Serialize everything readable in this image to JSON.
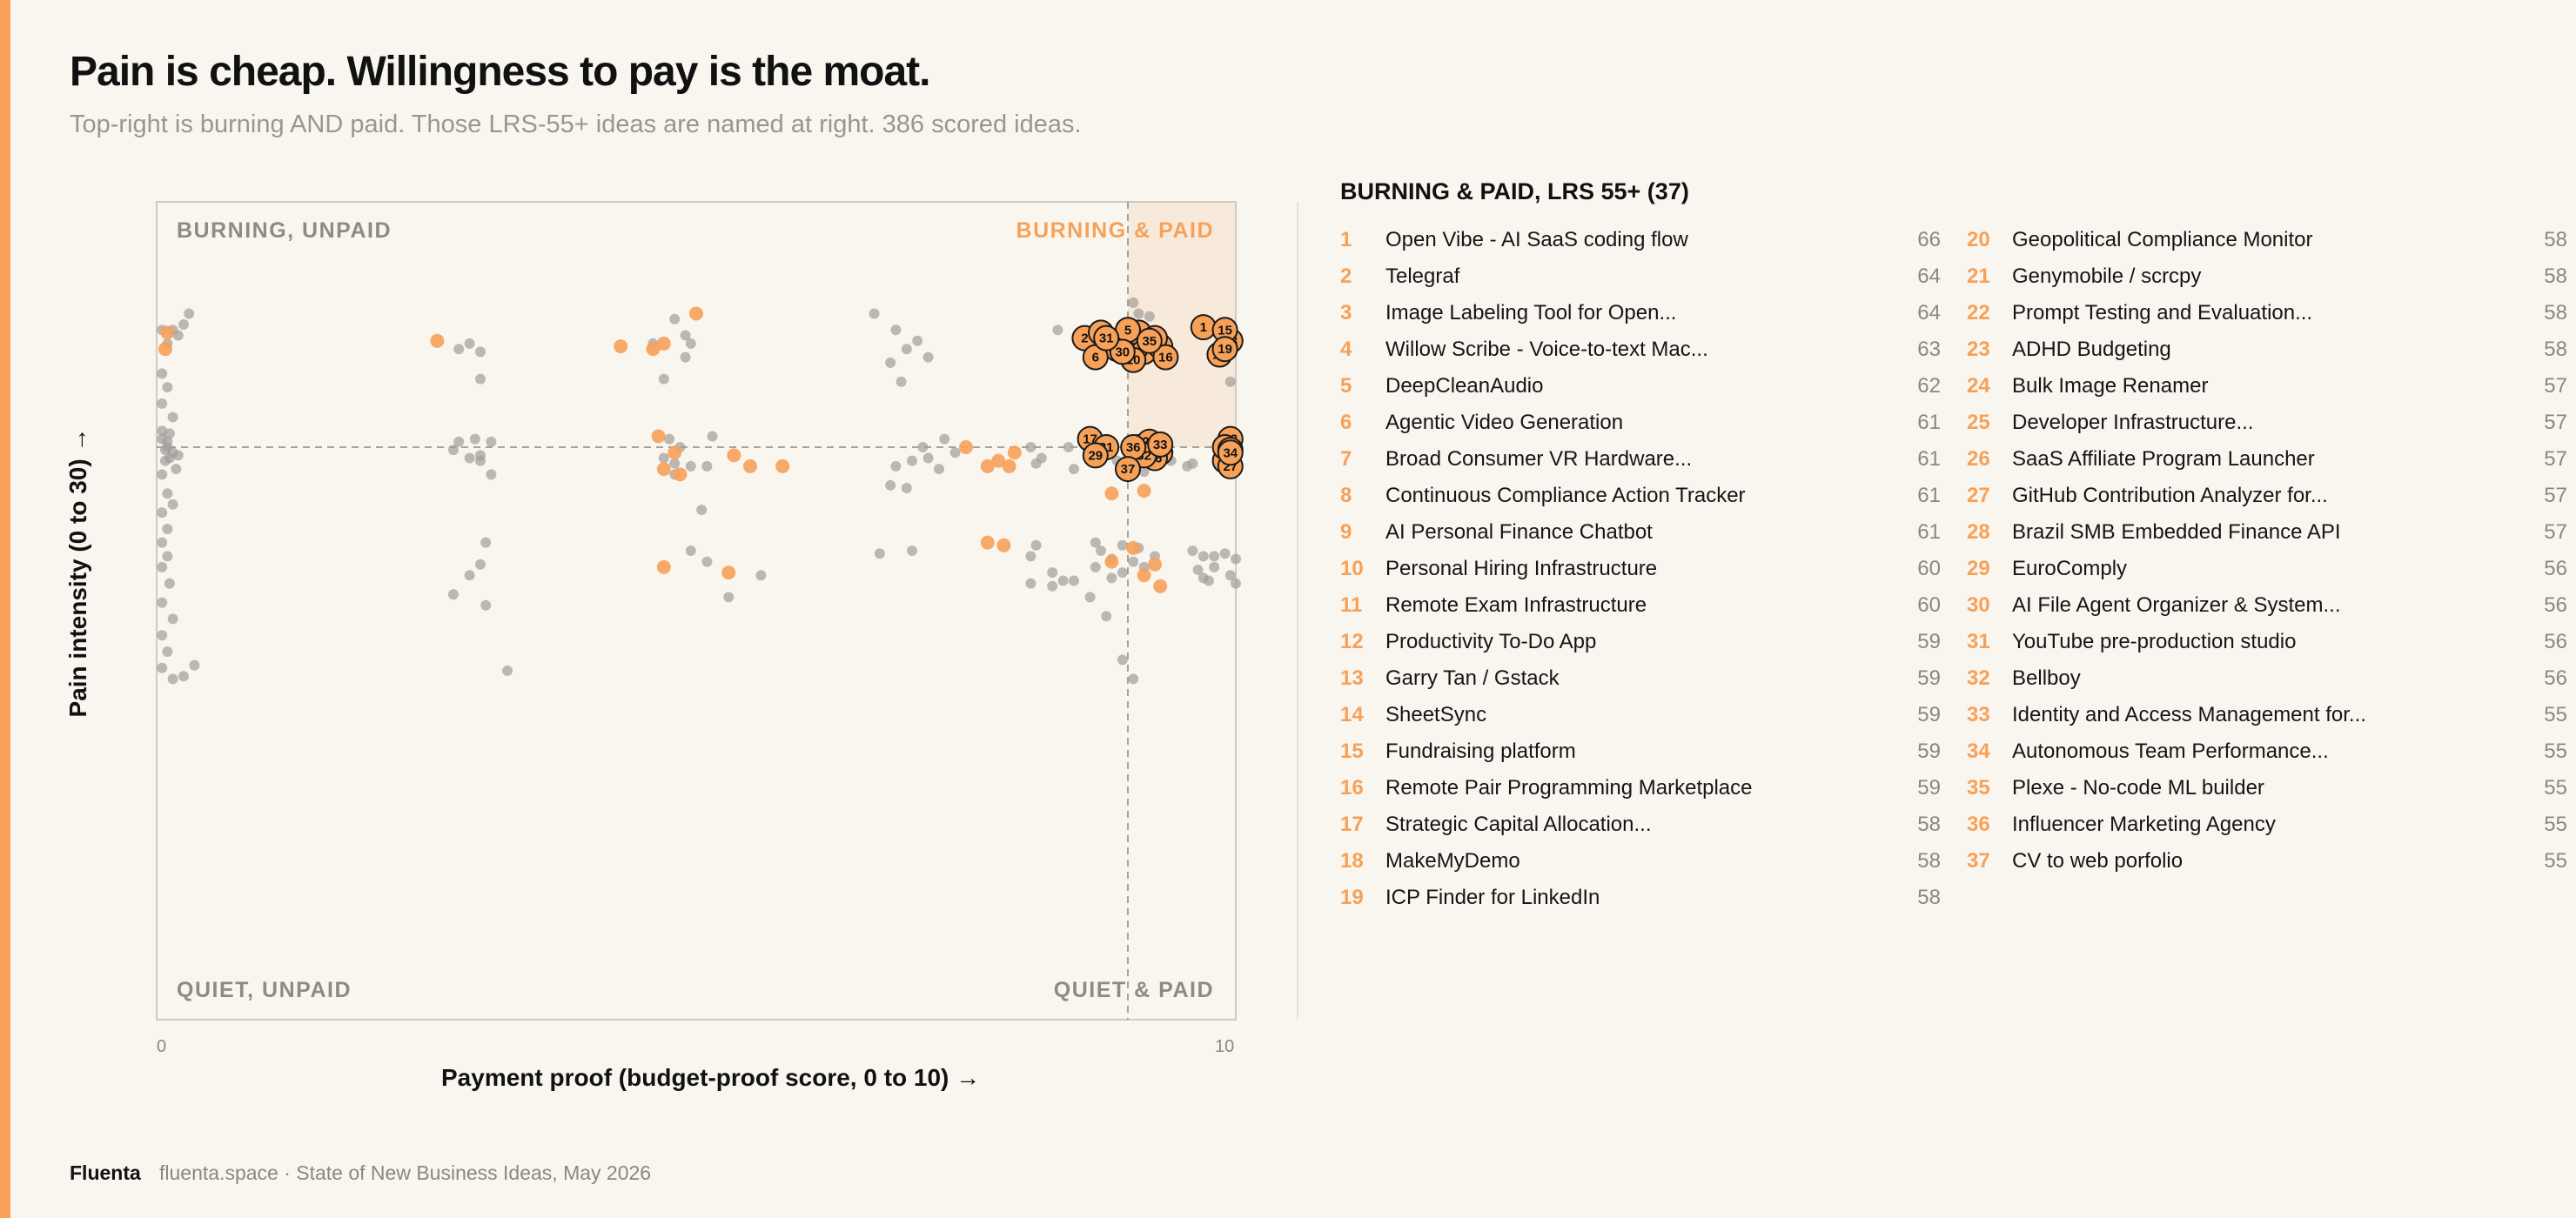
{
  "header": {
    "title": "Pain is cheap. Willingness to pay is the moat.",
    "subtitle": "Top-right is burning AND paid. Those LRS-55+ ideas are named at right. 386 scored ideas."
  },
  "colors": {
    "accent": "#f7a158",
    "gray_point": "#a19d98",
    "background": "#f9f6f0",
    "highlight_fill": "#f7a158"
  },
  "quadrants": {
    "top_left": "BURNING, UNPAID",
    "top_right": "BURNING & PAID",
    "bottom_left": "QUIET, UNPAID",
    "bottom_right": "QUIET & PAID"
  },
  "list": {
    "title": "BURNING & PAID, LRS 55+ (37)",
    "items": [
      {
        "rank": "1",
        "name": "Open Vibe - AI SaaS coding flow",
        "score": "66"
      },
      {
        "rank": "2",
        "name": "Telegraf",
        "score": "64"
      },
      {
        "rank": "3",
        "name": "Image Labeling Tool for Open...",
        "score": "64"
      },
      {
        "rank": "4",
        "name": "Willow Scribe - Voice-to-text Mac...",
        "score": "63"
      },
      {
        "rank": "5",
        "name": "DeepCleanAudio",
        "score": "62"
      },
      {
        "rank": "6",
        "name": "Agentic Video Generation",
        "score": "61"
      },
      {
        "rank": "7",
        "name": "Broad Consumer VR Hardware...",
        "score": "61"
      },
      {
        "rank": "8",
        "name": "Continuous Compliance Action Tracker",
        "score": "61"
      },
      {
        "rank": "9",
        "name": "AI Personal Finance Chatbot",
        "score": "61"
      },
      {
        "rank": "10",
        "name": "Personal Hiring Infrastructure",
        "score": "60"
      },
      {
        "rank": "11",
        "name": "Remote Exam Infrastructure",
        "score": "60"
      },
      {
        "rank": "12",
        "name": "Productivity To-Do App",
        "score": "59"
      },
      {
        "rank": "13",
        "name": "Garry Tan / Gstack",
        "score": "59"
      },
      {
        "rank": "14",
        "name": "SheetSync",
        "score": "59"
      },
      {
        "rank": "15",
        "name": "Fundraising platform",
        "score": "59"
      },
      {
        "rank": "16",
        "name": "Remote Pair Programming Marketplace",
        "score": "59"
      },
      {
        "rank": "17",
        "name": "Strategic Capital Allocation...",
        "score": "58"
      },
      {
        "rank": "18",
        "name": "MakeMyDemo",
        "score": "58"
      },
      {
        "rank": "19",
        "name": "ICP Finder for LinkedIn",
        "score": "58"
      },
      {
        "rank": "20",
        "name": "Geopolitical Compliance Monitor",
        "score": "58"
      },
      {
        "rank": "21",
        "name": "Genymobile / scrcpy",
        "score": "58"
      },
      {
        "rank": "22",
        "name": "Prompt Testing and Evaluation...",
        "score": "58"
      },
      {
        "rank": "23",
        "name": "ADHD Budgeting",
        "score": "58"
      },
      {
        "rank": "24",
        "name": "Bulk Image Renamer",
        "score": "57"
      },
      {
        "rank": "25",
        "name": "Developer Infrastructure...",
        "score": "57"
      },
      {
        "rank": "26",
        "name": "SaaS Affiliate Program Launcher",
        "score": "57"
      },
      {
        "rank": "27",
        "name": "GitHub Contribution Analyzer for...",
        "score": "57"
      },
      {
        "rank": "28",
        "name": "Brazil SMB Embedded Finance API",
        "score": "57"
      },
      {
        "rank": "29",
        "name": "EuroComply",
        "score": "56"
      },
      {
        "rank": "30",
        "name": "AI File Agent Organizer & System...",
        "score": "56"
      },
      {
        "rank": "31",
        "name": "YouTube pre-production studio",
        "score": "56"
      },
      {
        "rank": "32",
        "name": "Bellboy",
        "score": "56"
      },
      {
        "rank": "33",
        "name": "Identity and Access Management for...",
        "score": "55"
      },
      {
        "rank": "34",
        "name": "Autonomous Team Performance...",
        "score": "55"
      },
      {
        "rank": "35",
        "name": "Plexe - No-code ML builder",
        "score": "55"
      },
      {
        "rank": "36",
        "name": "Influencer Marketing Agency",
        "score": "55"
      },
      {
        "rank": "37",
        "name": "CV to web porfolio",
        "score": "55"
      }
    ]
  },
  "footer": {
    "brand": "Fluenta",
    "note": "fluenta.space · State of New Business Ideas, May 2026"
  },
  "chart_data": {
    "type": "scatter",
    "xlabel": "Payment proof (budget-proof score, 0 to 10) →",
    "ylabel": "Pain intensity (0 to 30) →",
    "xlim": [
      0,
      10
    ],
    "ylim": [
      0,
      30
    ],
    "xticks": [
      "0",
      "10"
    ],
    "threshold": {
      "x": 9,
      "y": 21
    },
    "grid": false,
    "legend": "none",
    "highlighted_points": [
      {
        "label": "1",
        "x": 9.7,
        "y": 25.4
      },
      {
        "label": "2",
        "x": 8.6,
        "y": 25.0
      },
      {
        "label": "3",
        "x": 8.9,
        "y": 24.6
      },
      {
        "label": "4",
        "x": 9.1,
        "y": 25.2
      },
      {
        "label": "5",
        "x": 9.0,
        "y": 25.3
      },
      {
        "label": "6",
        "x": 8.7,
        "y": 24.3
      },
      {
        "label": "7",
        "x": 9.2,
        "y": 24.9
      },
      {
        "label": "8",
        "x": 9.15,
        "y": 24.5
      },
      {
        "label": "9",
        "x": 8.75,
        "y": 25.2
      },
      {
        "label": "10",
        "x": 9.05,
        "y": 24.2
      },
      {
        "label": "11",
        "x": 9.3,
        "y": 24.7
      },
      {
        "label": "12",
        "x": 9.25,
        "y": 25.0
      },
      {
        "label": "13",
        "x": 9.95,
        "y": 24.9
      },
      {
        "label": "14",
        "x": 9.85,
        "y": 24.4
      },
      {
        "label": "15",
        "x": 9.9,
        "y": 25.3
      },
      {
        "label": "16",
        "x": 9.35,
        "y": 24.3
      },
      {
        "label": "17",
        "x": 8.65,
        "y": 21.3
      },
      {
        "label": "18",
        "x": 9.1,
        "y": 21.0
      },
      {
        "label": "19",
        "x": 9.9,
        "y": 24.6
      },
      {
        "label": "20",
        "x": 9.3,
        "y": 20.8
      },
      {
        "label": "21",
        "x": 8.8,
        "y": 21.0
      },
      {
        "label": "22",
        "x": 9.2,
        "y": 21.2
      },
      {
        "label": "23",
        "x": 9.95,
        "y": 21.3
      },
      {
        "label": "24",
        "x": 9.9,
        "y": 20.5
      },
      {
        "label": "25",
        "x": 9.9,
        "y": 21.0
      },
      {
        "label": "26",
        "x": 9.25,
        "y": 20.6
      },
      {
        "label": "27",
        "x": 9.95,
        "y": 20.3
      },
      {
        "label": "28",
        "x": 9.95,
        "y": 20.9
      },
      {
        "label": "29",
        "x": 8.7,
        "y": 20.7
      },
      {
        "label": "30",
        "x": 8.95,
        "y": 24.5
      },
      {
        "label": "31",
        "x": 8.8,
        "y": 25.0
      },
      {
        "label": "32",
        "x": 9.15,
        "y": 20.7
      },
      {
        "label": "33",
        "x": 9.3,
        "y": 21.1
      },
      {
        "label": "34",
        "x": 9.95,
        "y": 20.8
      },
      {
        "label": "35",
        "x": 9.2,
        "y": 24.9
      },
      {
        "label": "36",
        "x": 9.05,
        "y": 21.0
      },
      {
        "label": "37",
        "x": 9.0,
        "y": 20.2
      }
    ],
    "orange_points": [
      [
        0.1,
        25.2
      ],
      [
        0.08,
        24.6
      ],
      [
        2.6,
        24.9
      ],
      [
        5.0,
        25.9
      ],
      [
        4.7,
        24.8
      ],
      [
        4.6,
        24.6
      ],
      [
        4.3,
        24.7
      ],
      [
        4.65,
        21.4
      ],
      [
        4.7,
        20.2
      ],
      [
        4.85,
        20.0
      ],
      [
        4.8,
        20.8
      ],
      [
        5.35,
        20.7
      ],
      [
        5.5,
        20.3
      ],
      [
        5.8,
        20.3
      ],
      [
        8.85,
        19.3
      ],
      [
        9.15,
        19.4
      ],
      [
        9.25,
        16.7
      ],
      [
        7.95,
        20.8
      ],
      [
        7.5,
        21.0
      ],
      [
        7.7,
        20.3
      ],
      [
        8.85,
        16.8
      ],
      [
        9.3,
        15.9
      ],
      [
        9.15,
        16.3
      ],
      [
        7.85,
        17.4
      ],
      [
        7.7,
        17.5
      ],
      [
        7.9,
        20.3
      ],
      [
        9.05,
        17.3
      ],
      [
        4.7,
        16.6
      ],
      [
        7.8,
        20.5
      ],
      [
        5.3,
        16.4
      ]
    ],
    "gray_points": [
      [
        0.05,
        25.3
      ],
      [
        0.1,
        24.8
      ],
      [
        0.15,
        25.3
      ],
      [
        0.25,
        25.5
      ],
      [
        0.3,
        25.9
      ],
      [
        0.2,
        25.1
      ],
      [
        0.05,
        23.7
      ],
      [
        0.1,
        23.2
      ],
      [
        0.05,
        22.6
      ],
      [
        0.15,
        22.1
      ],
      [
        0.05,
        21.6
      ],
      [
        0.1,
        21.2
      ],
      [
        0.08,
        20.9
      ],
      [
        0.12,
        20.6
      ],
      [
        0.05,
        20.0
      ],
      [
        0.1,
        19.3
      ],
      [
        0.05,
        18.6
      ],
      [
        0.15,
        18.9
      ],
      [
        0.1,
        18.0
      ],
      [
        0.05,
        17.5
      ],
      [
        0.1,
        17.0
      ],
      [
        0.05,
        16.6
      ],
      [
        0.12,
        16.0
      ],
      [
        0.05,
        15.3
      ],
      [
        0.15,
        14.7
      ],
      [
        0.05,
        14.1
      ],
      [
        0.1,
        13.5
      ],
      [
        0.05,
        12.9
      ],
      [
        0.15,
        12.5
      ],
      [
        0.25,
        12.6
      ],
      [
        0.35,
        13.0
      ],
      [
        0.05,
        21.3
      ],
      [
        0.1,
        21.0
      ],
      [
        0.15,
        20.8
      ],
      [
        0.08,
        20.5
      ],
      [
        0.2,
        20.7
      ],
      [
        0.12,
        21.5
      ],
      [
        0.18,
        20.2
      ],
      [
        2.8,
        24.6
      ],
      [
        2.9,
        24.8
      ],
      [
        3.0,
        24.5
      ],
      [
        3.0,
        23.5
      ],
      [
        3.1,
        21.2
      ],
      [
        2.95,
        21.3
      ],
      [
        2.8,
        21.2
      ],
      [
        2.9,
        20.6
      ],
      [
        2.75,
        20.9
      ],
      [
        3.0,
        20.5
      ],
      [
        3.1,
        20.0
      ],
      [
        3.05,
        17.5
      ],
      [
        3.0,
        16.7
      ],
      [
        2.9,
        16.3
      ],
      [
        2.75,
        15.6
      ],
      [
        3.05,
        15.2
      ],
      [
        3.25,
        12.8
      ],
      [
        3.0,
        20.7
      ],
      [
        4.8,
        25.7
      ],
      [
        4.9,
        25.1
      ],
      [
        4.6,
        24.8
      ],
      [
        4.95,
        24.8
      ],
      [
        4.9,
        24.3
      ],
      [
        4.7,
        23.5
      ],
      [
        4.75,
        21.3
      ],
      [
        4.85,
        21.0
      ],
      [
        4.7,
        20.6
      ],
      [
        4.8,
        20.4
      ],
      [
        4.95,
        20.3
      ],
      [
        5.1,
        20.3
      ],
      [
        5.15,
        21.4
      ],
      [
        5.05,
        18.7
      ],
      [
        4.95,
        17.2
      ],
      [
        5.1,
        16.8
      ],
      [
        5.3,
        15.5
      ],
      [
        5.6,
        16.3
      ],
      [
        4.8,
        20.0
      ],
      [
        6.65,
        25.9
      ],
      [
        6.85,
        25.3
      ],
      [
        7.05,
        24.9
      ],
      [
        6.95,
        24.6
      ],
      [
        6.8,
        24.1
      ],
      [
        7.15,
        24.3
      ],
      [
        6.9,
        23.4
      ],
      [
        7.1,
        21.0
      ],
      [
        7.3,
        21.3
      ],
      [
        7.15,
        20.6
      ],
      [
        7.0,
        20.5
      ],
      [
        6.85,
        20.3
      ],
      [
        6.8,
        19.6
      ],
      [
        6.95,
        19.5
      ],
      [
        7.25,
        20.2
      ],
      [
        7.4,
        20.8
      ],
      [
        6.7,
        17.1
      ],
      [
        7.0,
        17.2
      ],
      [
        8.1,
        21.0
      ],
      [
        8.2,
        20.6
      ],
      [
        8.45,
        21.0
      ],
      [
        8.5,
        20.2
      ],
      [
        8.15,
        20.4
      ],
      [
        8.15,
        17.4
      ],
      [
        8.3,
        16.4
      ],
      [
        8.1,
        17.0
      ],
      [
        8.4,
        16.1
      ],
      [
        8.3,
        15.9
      ],
      [
        8.5,
        16.1
      ],
      [
        8.1,
        16.0
      ],
      [
        8.7,
        17.5
      ],
      [
        8.75,
        17.2
      ],
      [
        8.85,
        16.2
      ],
      [
        8.65,
        15.5
      ],
      [
        8.7,
        16.6
      ],
      [
        8.95,
        16.4
      ],
      [
        8.8,
        14.8
      ],
      [
        8.95,
        13.2
      ],
      [
        9.05,
        12.5
      ],
      [
        9.1,
        25.9
      ],
      [
        9.2,
        25.8
      ],
      [
        9.05,
        26.3
      ],
      [
        8.35,
        25.3
      ],
      [
        8.9,
        20.5
      ],
      [
        8.95,
        20.0
      ],
      [
        9.2,
        20.9
      ],
      [
        9.15,
        20.1
      ],
      [
        8.85,
        16.9
      ],
      [
        8.95,
        17.4
      ],
      [
        9.05,
        16.8
      ],
      [
        9.1,
        17.3
      ],
      [
        9.15,
        16.6
      ],
      [
        9.25,
        17.0
      ],
      [
        9.4,
        20.5
      ],
      [
        9.55,
        20.3
      ],
      [
        9.6,
        17.2
      ],
      [
        9.65,
        16.5
      ],
      [
        9.7,
        17.0
      ],
      [
        9.75,
        16.1
      ],
      [
        9.8,
        16.6
      ],
      [
        9.9,
        17.1
      ],
      [
        9.95,
        16.3
      ],
      [
        10.0,
        16.9
      ],
      [
        9.85,
        20.9
      ],
      [
        9.95,
        23.4
      ],
      [
        9.6,
        20.4
      ],
      [
        9.7,
        16.2
      ],
      [
        10.0,
        16.0
      ],
      [
        9.8,
        17.0
      ]
    ]
  }
}
